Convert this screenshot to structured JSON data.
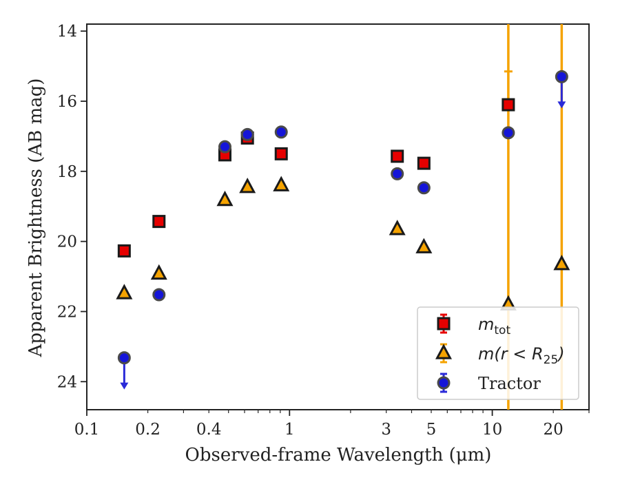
{
  "chart_data": {
    "type": "scatter",
    "xscale": "log",
    "xlim": [
      0.1,
      30
    ],
    "ylim": [
      24.8,
      13.8
    ],
    "y_inverted": true,
    "xlabel": "Observed-frame Wavelength (μm)",
    "ylabel": "Apparent Brightness (AB mag)",
    "xticks": [
      {
        "value": 0.1,
        "label": "0.1"
      },
      {
        "value": 0.2,
        "label": "0.2"
      },
      {
        "value": 0.4,
        "label": "0.4"
      },
      {
        "value": 1,
        "label": "1"
      },
      {
        "value": 3,
        "label": "3"
      },
      {
        "value": 5,
        "label": "5"
      },
      {
        "value": 10,
        "label": "10"
      },
      {
        "value": 20,
        "label": "20"
      }
    ],
    "yticks": [
      {
        "value": 14,
        "label": "14"
      },
      {
        "value": 16,
        "label": "16"
      },
      {
        "value": 18,
        "label": "18"
      },
      {
        "value": 20,
        "label": "20"
      },
      {
        "value": 22,
        "label": "22"
      },
      {
        "value": 24,
        "label": "24"
      }
    ],
    "legend_position": "lower-right",
    "series": [
      {
        "name": "m_tot",
        "legend_main": "m",
        "legend_sub": "tot",
        "marker": "square",
        "color": "#e60000",
        "edge": "#1a1a1a",
        "errcolor": "#e60000",
        "points": [
          {
            "x": 0.153,
            "y": 20.27
          },
          {
            "x": 0.227,
            "y": 19.43
          },
          {
            "x": 0.48,
            "y": 17.53
          },
          {
            "x": 0.62,
            "y": 17.05
          },
          {
            "x": 0.91,
            "y": 17.5
          },
          {
            "x": 3.4,
            "y": 17.57
          },
          {
            "x": 4.6,
            "y": 17.77
          },
          {
            "x": 12.0,
            "y": 16.1,
            "yerr": [
              0.95,
              0
            ]
          }
        ]
      },
      {
        "name": "m(r < R25)",
        "legend_main": "m(r < R",
        "legend_sub": "25",
        "legend_close": ")",
        "marker": "triangle",
        "color": "#f5a300",
        "edge": "#1a1a1a",
        "errcolor": "#f5a300",
        "points": [
          {
            "x": 0.153,
            "y": 21.48
          },
          {
            "x": 0.227,
            "y": 20.92
          },
          {
            "x": 0.48,
            "y": 18.82
          },
          {
            "x": 0.62,
            "y": 18.45
          },
          {
            "x": 0.91,
            "y": 18.4
          },
          {
            "x": 3.4,
            "y": 19.65
          },
          {
            "x": 4.6,
            "y": 20.17
          },
          {
            "x": 12.0,
            "y": 21.8,
            "yerr_full": true
          },
          {
            "x": 22.0,
            "y": 20.65,
            "yerr_full": true
          }
        ]
      },
      {
        "name": "Tractor",
        "marker": "circle",
        "color": "#1515d8",
        "edge": "#4a4a4a",
        "errcolor": "#2a2ad8",
        "points": [
          {
            "x": 0.153,
            "y": 23.32,
            "upper_limit": true
          },
          {
            "x": 0.227,
            "y": 21.52
          },
          {
            "x": 0.48,
            "y": 17.3
          },
          {
            "x": 0.62,
            "y": 16.95
          },
          {
            "x": 0.91,
            "y": 16.88
          },
          {
            "x": 3.4,
            "y": 18.07
          },
          {
            "x": 4.6,
            "y": 18.47
          },
          {
            "x": 12.0,
            "y": 16.9
          },
          {
            "x": 22.0,
            "y": 15.3,
            "upper_limit": true
          }
        ]
      }
    ]
  }
}
